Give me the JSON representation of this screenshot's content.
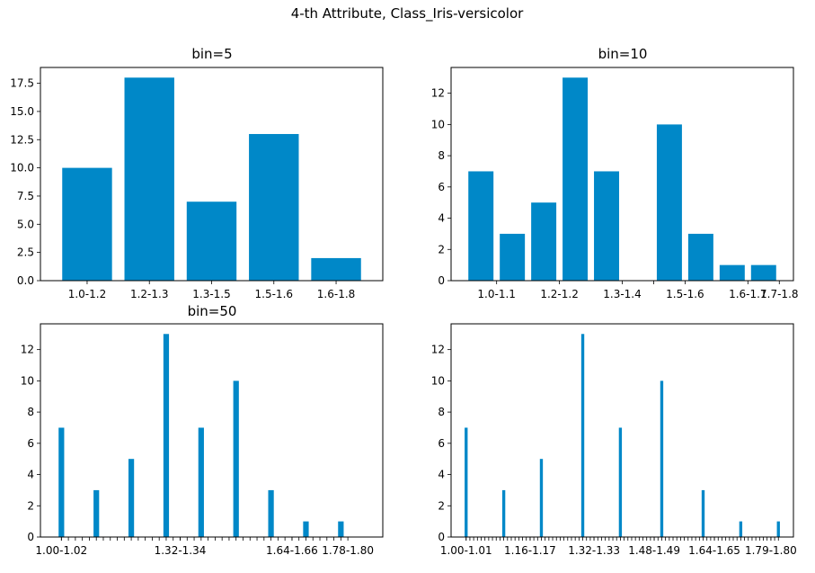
{
  "figure": {
    "title": "4-th Attribute, Class_Iris-versicolor",
    "bar_color": "#0088C8"
  },
  "chart_data": [
    {
      "type": "bar",
      "title": "bin=5",
      "x": [
        1,
        2,
        3,
        4,
        5
      ],
      "values": [
        10,
        18,
        7,
        13,
        2
      ],
      "xlim": [
        0.25,
        5.75
      ],
      "ylim": [
        0,
        18.9
      ],
      "bar_width": 0.8,
      "xticks": [
        {
          "x": 1,
          "label": "1.0-1.2"
        },
        {
          "x": 2,
          "label": "1.2-1.3"
        },
        {
          "x": 3,
          "label": "1.3-1.5"
        },
        {
          "x": 4,
          "label": "1.5-1.6"
        },
        {
          "x": 5,
          "label": "1.6-1.8"
        }
      ],
      "yticks": [
        {
          "y": 0,
          "label": "0.0"
        },
        {
          "y": 2.5,
          "label": "2.5"
        },
        {
          "y": 5,
          "label": "5.0"
        },
        {
          "y": 7.5,
          "label": "7.5"
        },
        {
          "y": 10,
          "label": "10.0"
        },
        {
          "y": 12.5,
          "label": "12.5"
        },
        {
          "y": 15,
          "label": "15.0"
        },
        {
          "y": 17.5,
          "label": "17.5"
        }
      ]
    },
    {
      "type": "bar",
      "title": "bin=10",
      "x": [
        1,
        2,
        3,
        4,
        5,
        6,
        7,
        8,
        9,
        10
      ],
      "values": [
        7,
        3,
        5,
        13,
        7,
        0,
        10,
        3,
        1,
        1
      ],
      "xlim": [
        0.05,
        10.95
      ],
      "ylim": [
        0,
        13.65
      ],
      "bar_width": 0.8,
      "xticks": [
        {
          "x": 1.5,
          "label": "1.0-1.1"
        },
        {
          "x": 3.5,
          "label": "1.2-1.2"
        },
        {
          "x": 5.5,
          "label": "1.3-1.4"
        },
        {
          "x": 6.5,
          "label": ""
        },
        {
          "x": 7.5,
          "label": "1.5-1.6"
        },
        {
          "x": 9.5,
          "label": "1.6-1.7"
        },
        {
          "x": 10.5,
          "label": "1.7-1.8"
        }
      ],
      "yticks": [
        {
          "y": 0,
          "label": "0"
        },
        {
          "y": 2,
          "label": "2"
        },
        {
          "y": 4,
          "label": "4"
        },
        {
          "y": 6,
          "label": "6"
        },
        {
          "y": 8,
          "label": "8"
        },
        {
          "y": 10,
          "label": "10"
        },
        {
          "y": 12,
          "label": "12"
        }
      ]
    },
    {
      "type": "bar",
      "title": "bin=50",
      "x": [
        1,
        6,
        11,
        16,
        21,
        26,
        31,
        36,
        41
      ],
      "values": [
        7,
        3,
        5,
        13,
        7,
        10,
        3,
        1,
        1
      ],
      "xlim": [
        -2,
        47
      ],
      "ylim": [
        0,
        13.65
      ],
      "bar_width": 0.8,
      "minor_ticks": {
        "from": 1,
        "to": 41,
        "step": 1
      },
      "xticks": [
        {
          "x": 1,
          "label": "1.00-1.02"
        },
        {
          "x": 18,
          "label": "1.32-1.34"
        },
        {
          "x": 34,
          "label": "1.64-1.66"
        },
        {
          "x": 42,
          "label": "1.78-1.80"
        }
      ],
      "yticks": [
        {
          "y": 0,
          "label": "0"
        },
        {
          "y": 2,
          "label": "2"
        },
        {
          "y": 4,
          "label": "4"
        },
        {
          "y": 6,
          "label": "6"
        },
        {
          "y": 8,
          "label": "8"
        },
        {
          "y": 10,
          "label": "10"
        },
        {
          "y": 12,
          "label": "12"
        }
      ]
    },
    {
      "type": "bar",
      "title": "",
      "x": [
        1,
        11,
        21,
        32,
        42,
        53,
        64,
        74,
        84
      ],
      "values": [
        7,
        3,
        5,
        13,
        7,
        10,
        3,
        1,
        1
      ],
      "xlim": [
        -3,
        88
      ],
      "ylim": [
        0,
        13.65
      ],
      "bar_width": 0.8,
      "minor_ticks": {
        "from": 1,
        "to": 84,
        "step": 1
      },
      "xticks": [
        {
          "x": 1,
          "label": "1.00-1.01"
        },
        {
          "x": 18,
          "label": "1.16-1.17"
        },
        {
          "x": 35,
          "label": "1.32-1.33"
        },
        {
          "x": 51,
          "label": "1.48-1.49"
        },
        {
          "x": 67,
          "label": "1.64-1.65"
        },
        {
          "x": 82,
          "label": "1.79-1.80"
        }
      ],
      "yticks": [
        {
          "y": 0,
          "label": "0"
        },
        {
          "y": 2,
          "label": "2"
        },
        {
          "y": 4,
          "label": "4"
        },
        {
          "y": 6,
          "label": "6"
        },
        {
          "y": 8,
          "label": "8"
        },
        {
          "y": 10,
          "label": "10"
        },
        {
          "y": 12,
          "label": "12"
        }
      ]
    }
  ]
}
